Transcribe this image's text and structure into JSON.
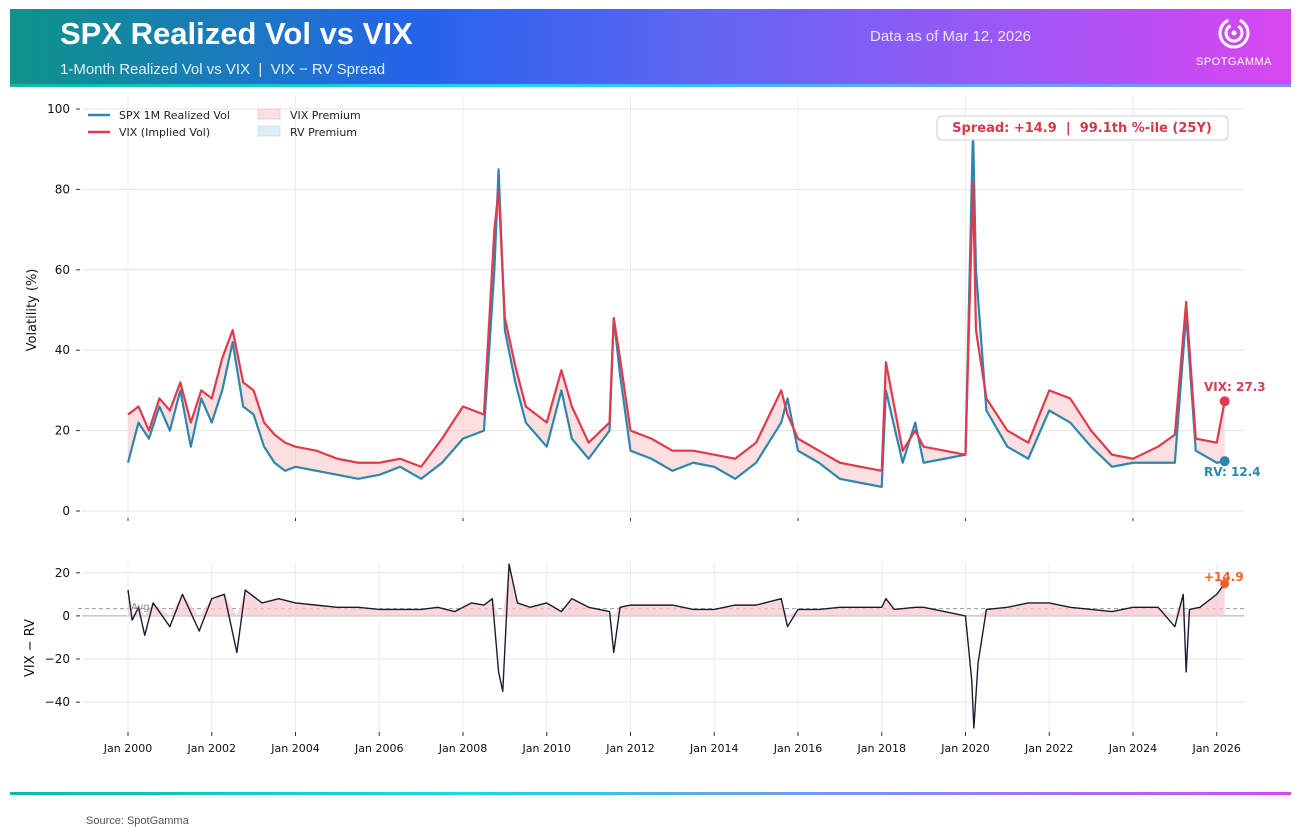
{
  "header": {
    "title": "SPX Realized Vol vs VIX",
    "subtitle": "1-Month Realized Vol vs VIX  |  VIX − RV Spread",
    "as_of": "Data as of Mar 12, 2026",
    "logo_text": "SPOTGAMMA"
  },
  "footer": {
    "source": "Source: SpotGamma"
  },
  "colors": {
    "rv": "#2e86ab",
    "vix": "#e03a4e",
    "spread_line": "#1b1b33",
    "vix_premium_fill": "#f8c9cd",
    "rv_premium_fill": "#cfe6f2",
    "marker_orange": "#f2602b"
  },
  "chart_data": [
    {
      "type": "line",
      "panel": "top",
      "title": "",
      "ylabel": "Volatility (%)",
      "ylim": [
        0,
        100
      ],
      "yticks": [
        0,
        20,
        40,
        60,
        80,
        100
      ],
      "x_range": [
        2000.0,
        2027.75
      ],
      "xticks": [
        {
          "value": 2000,
          "label": "Jan 2000"
        },
        {
          "value": 2004,
          "label": "Jan 2004"
        },
        {
          "value": 2008,
          "label": "Jan 2008"
        },
        {
          "value": 2012,
          "label": "Jan 2012"
        },
        {
          "value": 2016,
          "label": "Jan 2016"
        },
        {
          "value": 2020,
          "label": "Jan 2020"
        },
        {
          "value": 2024,
          "label": "Jan 2024"
        }
      ],
      "legend": [
        "SPX 1M Realized Vol",
        "VIX (Implied Vol)",
        "VIX Premium",
        "RV Premium"
      ],
      "x": [
        2000.0,
        2000.25,
        2000.5,
        2000.75,
        2001.0,
        2001.25,
        2001.5,
        2001.75,
        2002.0,
        2002.25,
        2002.5,
        2002.75,
        2003.0,
        2003.25,
        2003.5,
        2003.75,
        2004.0,
        2004.5,
        2005.0,
        2005.5,
        2006.0,
        2006.5,
        2007.0,
        2007.5,
        2008.0,
        2008.5,
        2008.75,
        2008.85,
        2009.0,
        2009.25,
        2009.5,
        2010.0,
        2010.35,
        2010.6,
        2011.0,
        2011.5,
        2011.6,
        2011.75,
        2012.0,
        2012.5,
        2013.0,
        2013.5,
        2014.0,
        2014.5,
        2015.0,
        2015.6,
        2015.75,
        2016.0,
        2016.5,
        2017.0,
        2017.5,
        2018.0,
        2018.1,
        2018.5,
        2018.8,
        2019.0,
        2019.5,
        2020.0,
        2020.18,
        2020.25,
        2020.5,
        2021.0,
        2021.5,
        2022.0,
        2022.5,
        2023.0,
        2023.5,
        2024.0,
        2024.6,
        2025.0,
        2025.27,
        2025.5,
        2026.0,
        2026.19
      ],
      "series": [
        {
          "name": "SPX 1M Realized Vol",
          "values": [
            12,
            22,
            18,
            26,
            20,
            30,
            16,
            28,
            22,
            30,
            42,
            26,
            24,
            16,
            12,
            10,
            11,
            10,
            9,
            8,
            9,
            11,
            8,
            12,
            18,
            20,
            60,
            85,
            45,
            32,
            22,
            16,
            30,
            18,
            13,
            20,
            48,
            34,
            15,
            13,
            10,
            12,
            11,
            8,
            12,
            22,
            28,
            15,
            12,
            8,
            7,
            6,
            30,
            12,
            22,
            12,
            13,
            14,
            95,
            60,
            25,
            16,
            13,
            25,
            22,
            16,
            11,
            12,
            12,
            12,
            49,
            15,
            12,
            12.4
          ]
        },
        {
          "name": "VIX (Implied Vol)",
          "values": [
            24,
            26,
            20,
            28,
            25,
            32,
            22,
            30,
            28,
            38,
            45,
            32,
            30,
            22,
            19,
            17,
            16,
            15,
            13,
            12,
            12,
            13,
            11,
            18,
            26,
            24,
            70,
            80,
            48,
            36,
            26,
            22,
            35,
            26,
            17,
            22,
            48,
            38,
            20,
            18,
            15,
            15,
            14,
            13,
            17,
            30,
            24,
            18,
            15,
            12,
            11,
            10,
            37,
            15,
            20,
            16,
            15,
            14,
            82,
            45,
            28,
            20,
            17,
            30,
            28,
            20,
            14,
            13,
            16,
            19,
            52,
            18,
            17,
            27.3
          ]
        }
      ],
      "annotations": {
        "spread_box": "Spread: +14.9  |  99.1th %-ile (25Y)",
        "vix_label": "VIX: 27.3",
        "rv_label": "RV: 12.4"
      }
    },
    {
      "type": "line",
      "panel": "bottom",
      "ylabel": "VIX − RV",
      "ylim": [
        -52,
        25
      ],
      "yticks": [
        -40,
        -20,
        0,
        20
      ],
      "x_range": [
        2000.0,
        2027.75
      ],
      "xticks": [
        {
          "value": 2000,
          "label": "Jan 2000"
        },
        {
          "value": 2002,
          "label": "Jan 2002"
        },
        {
          "value": 2004,
          "label": "Jan 2004"
        },
        {
          "value": 2006,
          "label": "Jan 2006"
        },
        {
          "value": 2008,
          "label": "Jan 2008"
        },
        {
          "value": 2010,
          "label": "Jan 2010"
        },
        {
          "value": 2012,
          "label": "Jan 2012"
        },
        {
          "value": 2014,
          "label": "Jan 2014"
        },
        {
          "value": 2016,
          "label": "Jan 2016"
        },
        {
          "value": 2018,
          "label": "Jan 2018"
        },
        {
          "value": 2020,
          "label": "Jan 2020"
        },
        {
          "value": 2022,
          "label": "Jan 2022"
        },
        {
          "value": 2024,
          "label": "Jan 2024"
        },
        {
          "value": 2026,
          "label": "Jan 2026"
        }
      ],
      "avg_value": 3.4,
      "avg_label": "Avg",
      "x": [
        2000.0,
        2000.1,
        2000.25,
        2000.4,
        2000.6,
        2001.0,
        2001.3,
        2001.7,
        2002.0,
        2002.3,
        2002.6,
        2002.8,
        2003.2,
        2003.6,
        2004.0,
        2004.5,
        2005.0,
        2005.5,
        2006.0,
        2006.5,
        2007.0,
        2007.4,
        2007.8,
        2008.2,
        2008.5,
        2008.7,
        2008.85,
        2008.95,
        2009.1,
        2009.3,
        2009.6,
        2010.0,
        2010.35,
        2010.6,
        2011.0,
        2011.5,
        2011.6,
        2011.75,
        2012.0,
        2012.5,
        2013.0,
        2013.5,
        2014.0,
        2014.5,
        2015.0,
        2015.6,
        2015.75,
        2016.0,
        2016.5,
        2017.0,
        2017.5,
        2018.0,
        2018.1,
        2018.3,
        2018.8,
        2019.0,
        2019.5,
        2020.0,
        2020.15,
        2020.2,
        2020.3,
        2020.5,
        2021.0,
        2021.5,
        2022.0,
        2022.5,
        2023.0,
        2023.5,
        2024.0,
        2024.6,
        2025.0,
        2025.2,
        2025.27,
        2025.35,
        2025.6,
        2026.0,
        2026.19
      ],
      "values": [
        12,
        -2,
        4,
        -9,
        6,
        -5,
        10,
        -7,
        8,
        10,
        -17,
        12,
        6,
        8,
        6,
        5,
        4,
        4,
        3,
        3,
        3,
        4,
        2,
        6,
        5,
        8,
        -26,
        -35,
        24,
        6,
        4,
        6,
        2,
        8,
        4,
        2,
        -17,
        4,
        5,
        5,
        5,
        3,
        3,
        5,
        5,
        8,
        -5,
        3,
        3,
        4,
        4,
        4,
        8,
        3,
        4,
        4,
        2,
        0,
        -30,
        -52,
        -22,
        3,
        4,
        6,
        6,
        4,
        3,
        2,
        4,
        4,
        -5,
        10,
        -26,
        3,
        4,
        10,
        14.9
      ],
      "end_label": "+14.9"
    }
  ]
}
